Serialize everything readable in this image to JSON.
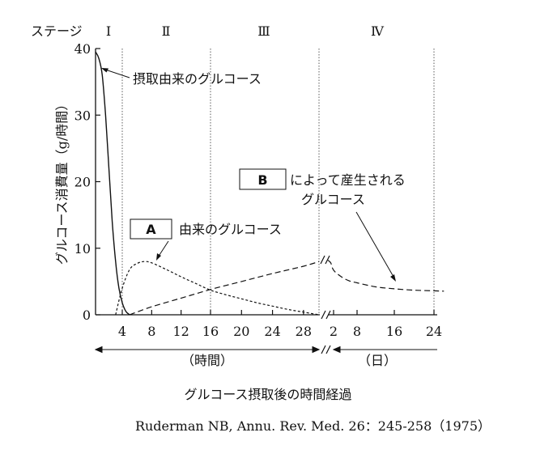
{
  "chart_data": {
    "type": "line",
    "stage_label": "ステージ",
    "stages": [
      "Ⅰ",
      "Ⅱ",
      "Ⅲ",
      "Ⅳ"
    ],
    "ylabel": "グルコース消費量（g/時間）",
    "ylim": [
      0,
      40
    ],
    "yticks": [
      "0",
      "10",
      "20",
      "30",
      "40"
    ],
    "xticks_hours": [
      "4",
      "8",
      "12",
      "16",
      "20",
      "24",
      "28"
    ],
    "xticks_days": [
      "2",
      "8",
      "16",
      "24"
    ],
    "unit_hours": "（時間）",
    "unit_days": "（日）",
    "xlabel": "グルコース摂取後の時間経過",
    "source": "Ruderman NB, Annu. Rev. Med. 26：245-258（1975）",
    "series": [
      {
        "name": "摂取由来のグルコース",
        "style": "solid",
        "points_hours": [
          [
            0,
            39.5
          ],
          [
            0.5,
            38.5
          ],
          [
            1,
            36
          ],
          [
            1.5,
            30
          ],
          [
            2,
            22
          ],
          [
            2.5,
            14
          ],
          [
            3,
            8
          ],
          [
            3.5,
            4
          ],
          [
            4,
            1.8
          ],
          [
            4.5,
            0.5
          ],
          [
            5,
            0
          ]
        ]
      },
      {
        "name": "由来のグルコース",
        "box": "A",
        "style": "dotted",
        "points_hours": [
          [
            3,
            0
          ],
          [
            4,
            4
          ],
          [
            5,
            6.8
          ],
          [
            6,
            7.7
          ],
          [
            7,
            8
          ],
          [
            8,
            7.8
          ],
          [
            10,
            6.8
          ],
          [
            12,
            5.7
          ],
          [
            14,
            4.7
          ],
          [
            16,
            3.7
          ],
          [
            18,
            3
          ],
          [
            20,
            2.4
          ],
          [
            22,
            1.8
          ],
          [
            24,
            1.3
          ],
          [
            26,
            0.8
          ],
          [
            28,
            0.4
          ],
          [
            30,
            0
          ]
        ]
      },
      {
        "name": "によって産生される\nグルコース",
        "box": "B",
        "style": "dashed",
        "points_hours": [
          [
            5,
            0
          ],
          [
            8,
            1.2
          ],
          [
            12,
            2.5
          ],
          [
            16,
            3.8
          ],
          [
            20,
            5.0
          ],
          [
            24,
            6.2
          ],
          [
            28,
            7.3
          ],
          [
            30,
            8
          ]
        ],
        "points_days": [
          [
            0,
            8.2
          ],
          [
            1,
            7.8
          ],
          [
            2,
            6.7
          ],
          [
            4,
            5.7
          ],
          [
            6,
            5.1
          ],
          [
            8,
            4.8
          ],
          [
            12,
            4.2
          ],
          [
            16,
            3.9
          ],
          [
            20,
            3.7
          ],
          [
            24,
            3.6
          ],
          [
            26,
            3.55
          ]
        ]
      }
    ],
    "gridlines": "vertical dotted at stage boundaries",
    "axis_break_symbol": "//"
  }
}
